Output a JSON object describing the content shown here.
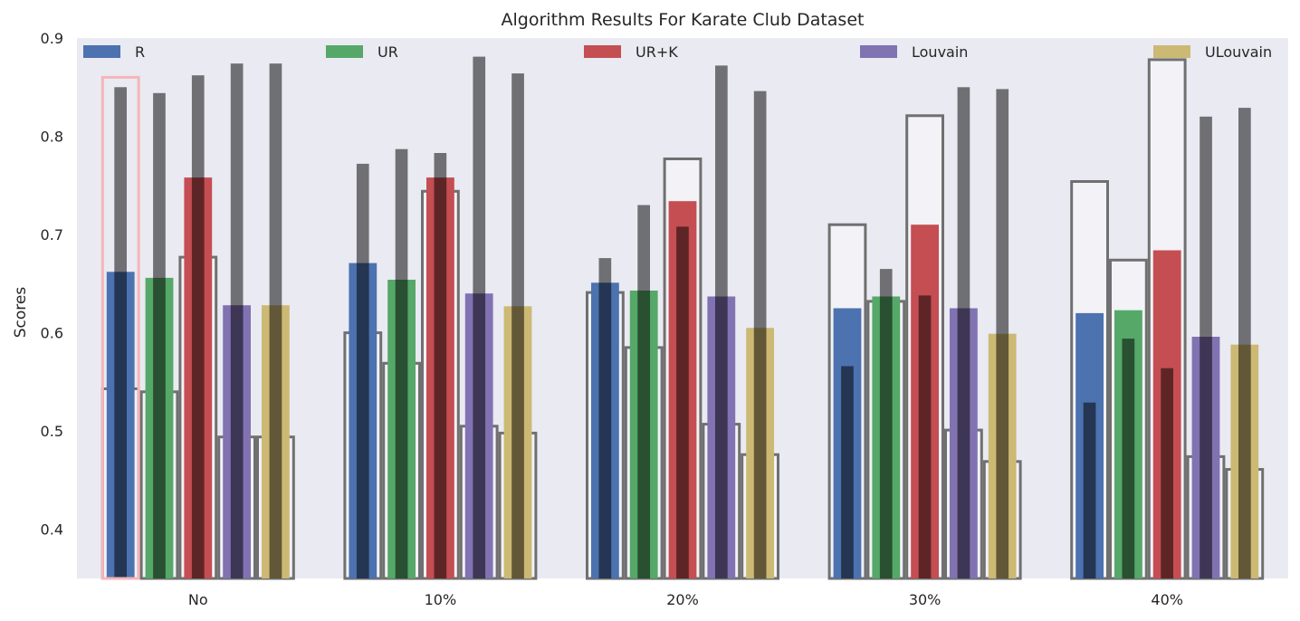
{
  "chart_data": {
    "type": "bar",
    "title": "Algorithm Results For Karate Club Dataset",
    "xlabel": "",
    "ylabel": "Scores",
    "ylim": [
      0.35,
      0.9
    ],
    "yticks": [
      0.4,
      0.5,
      0.6,
      0.7,
      0.8,
      0.9
    ],
    "grid": false,
    "legend_placement": "top (single row)",
    "categories": [
      "No",
      "10%",
      "20%",
      "30%",
      "40%"
    ],
    "series": [
      {
        "name": "R",
        "color": "#4c72b0",
        "values": [
          0.662,
          0.671,
          0.651,
          0.625,
          0.62
        ]
      },
      {
        "name": "UR",
        "color": "#55a868",
        "values": [
          0.656,
          0.654,
          0.643,
          0.637,
          0.623
        ]
      },
      {
        "name": "UR+K",
        "color": "#c44e52",
        "values": [
          0.758,
          0.758,
          0.734,
          0.71,
          0.684
        ]
      },
      {
        "name": "Louvain",
        "color": "#8172b2",
        "values": [
          0.628,
          0.64,
          0.637,
          0.625,
          0.596
        ]
      },
      {
        "name": "ULouvain",
        "color": "#ccb974",
        "values": [
          0.628,
          0.627,
          0.605,
          0.599,
          0.588
        ]
      }
    ],
    "inner_dark_bars": [
      [
        0.85,
        0.844,
        0.862,
        0.874,
        0.874
      ],
      [
        0.772,
        0.787,
        0.783,
        0.881,
        0.864
      ],
      [
        0.676,
        0.73,
        0.708,
        0.872,
        0.846
      ],
      [
        0.566,
        0.665,
        0.638,
        0.85,
        0.848
      ],
      [
        0.529,
        0.594,
        0.564,
        0.82,
        0.829
      ]
    ],
    "outline_bars": [
      [
        0.543,
        0.54,
        0.677,
        0.494,
        0.494
      ],
      [
        0.6,
        0.569,
        0.744,
        0.505,
        0.498
      ],
      [
        0.641,
        0.585,
        0.777,
        0.507,
        0.476
      ],
      [
        0.71,
        0.632,
        0.821,
        0.501,
        0.469
      ],
      [
        0.754,
        0.674,
        0.878,
        0.474,
        0.461
      ]
    ],
    "highlight_box": {
      "category": "No",
      "series": "R",
      "top_value": 0.86,
      "color": "#f4b6b8"
    }
  }
}
